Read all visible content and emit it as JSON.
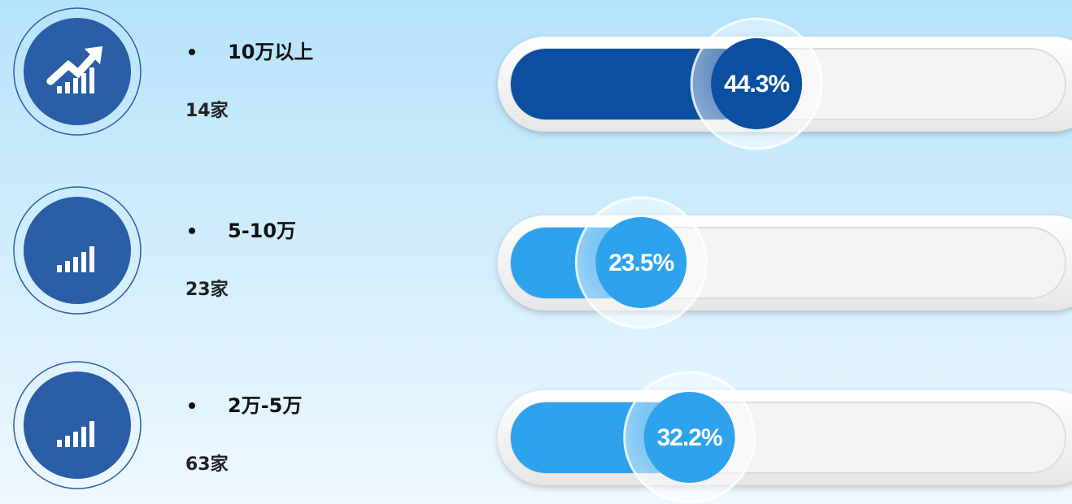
{
  "items": [
    {
      "label": "10万以上",
      "count": "14家",
      "percent": 44.3,
      "percent_label": "44.3%",
      "color": "#0a4fa0"
    },
    {
      "label": "5-10万",
      "count": "23家",
      "percent": 23.5,
      "percent_label": "23.5%",
      "color": "#2ea2ec"
    },
    {
      "label": "2万-5万",
      "count": "63家",
      "percent": 32.2,
      "percent_label": "32.2%",
      "color": "#2ea2ec"
    }
  ]
}
